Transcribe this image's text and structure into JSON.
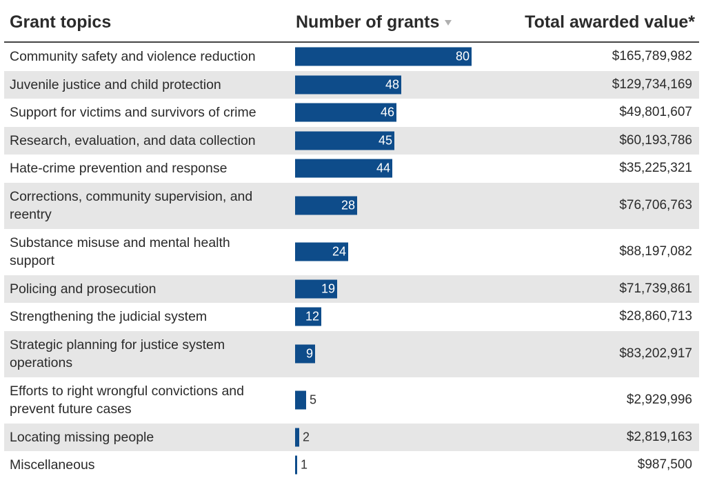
{
  "header": {
    "topic_label": "Grant topics",
    "count_label": "Number of grants",
    "value_label": "Total awarded value*"
  },
  "colors": {
    "bar": "#0e4c8a",
    "row_shade": "#e6e6e6",
    "header_rule": "#444444"
  },
  "chart_data": {
    "type": "table",
    "columns": [
      "Grant topics",
      "Number of grants",
      "Total awarded value*"
    ],
    "sort": {
      "column": "Number of grants",
      "direction": "descending"
    },
    "xlim": [
      0,
      80
    ],
    "rows": [
      {
        "topic": "Community safety and violence reduction",
        "count": 80,
        "value": "$165,789,982"
      },
      {
        "topic": "Juvenile justice and child protection",
        "count": 48,
        "value": "$129,734,169"
      },
      {
        "topic": "Support for victims and survivors of crime",
        "count": 46,
        "value": "$49,801,607"
      },
      {
        "topic": "Research, evaluation, and data collection",
        "count": 45,
        "value": "$60,193,786"
      },
      {
        "topic": "Hate-crime prevention and response",
        "count": 44,
        "value": "$35,225,321"
      },
      {
        "topic": "Corrections, community supervision, and reentry",
        "count": 28,
        "value": "$76,706,763"
      },
      {
        "topic": "Substance misuse and mental health support",
        "count": 24,
        "value": "$88,197,082"
      },
      {
        "topic": "Policing and prosecution",
        "count": 19,
        "value": "$71,739,861"
      },
      {
        "topic": "Strengthening the judicial system",
        "count": 12,
        "value": "$28,860,713"
      },
      {
        "topic": "Strategic planning for justice system operations",
        "count": 9,
        "value": "$83,202,917"
      },
      {
        "topic": "Efforts to right wrongful convictions and prevent future cases",
        "count": 5,
        "value": "$2,929,996"
      },
      {
        "topic": "Locating missing people",
        "count": 2,
        "value": "$2,819,163"
      },
      {
        "topic": "Miscellaneous",
        "count": 1,
        "value": "$987,500"
      }
    ]
  }
}
